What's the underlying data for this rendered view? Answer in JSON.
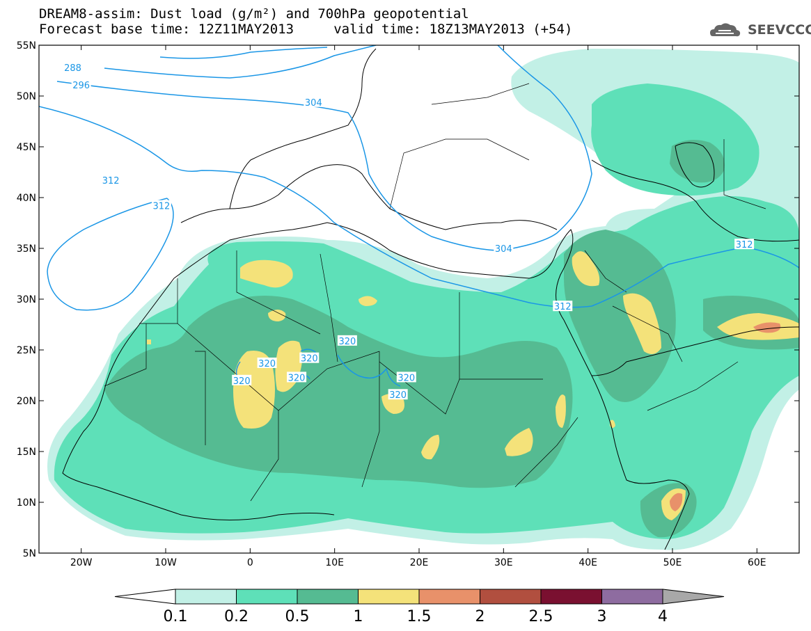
{
  "header": {
    "line1": "DREAM8-assim: Dust load (g/m²) and 700hPa geopotential",
    "line2": "Forecast base time: 12Z11MAY2013     valid time: 18Z13MAY2013 (+54)",
    "logo_text": "SEEVCCC"
  },
  "map": {
    "lon_range": [
      -25,
      65
    ],
    "lat_range": [
      5,
      55
    ],
    "lat_ticks": [
      "55N",
      "50N",
      "45N",
      "40N",
      "35N",
      "30N",
      "25N",
      "20N",
      "15N",
      "10N",
      "5N"
    ],
    "lon_ticks": [
      "20W",
      "10W",
      "0",
      "10E",
      "20E",
      "30E",
      "40E",
      "50E",
      "60E"
    ],
    "contour_labels": [
      {
        "text": "288",
        "lon": -21.0,
        "lat": 52.8
      },
      {
        "text": "296",
        "lon": -20.0,
        "lat": 51.1
      },
      {
        "text": "304",
        "lon": 7.5,
        "lat": 49.4
      },
      {
        "text": "312",
        "lon": -16.5,
        "lat": 41.7
      },
      {
        "text": "312",
        "lon": -10.5,
        "lat": 39.2
      },
      {
        "text": "304",
        "lon": 30.0,
        "lat": 35.0
      },
      {
        "text": "312",
        "lon": 37.0,
        "lat": 29.3
      },
      {
        "text": "312",
        "lon": 58.5,
        "lat": 35.4
      },
      {
        "text": "320",
        "lon": 11.5,
        "lat": 25.9
      },
      {
        "text": "320",
        "lon": 2.0,
        "lat": 23.7
      },
      {
        "text": "320",
        "lon": 7.0,
        "lat": 24.2
      },
      {
        "text": "320",
        "lon": 5.5,
        "lat": 22.3
      },
      {
        "text": "320",
        "lon": -1.0,
        "lat": 22.0
      },
      {
        "text": "320",
        "lon": 18.5,
        "lat": 22.3
      },
      {
        "text": "320",
        "lon": 17.5,
        "lat": 20.6
      }
    ]
  },
  "colorbar": {
    "levels": [
      "0.1",
      "0.2",
      "0.5",
      "1",
      "1.5",
      "2",
      "2.5",
      "3",
      "4"
    ],
    "colors": [
      "#c2f0e6",
      "#5ee0b8",
      "#55bb92",
      "#f4e27a",
      "#e8916a",
      "#b14f3f",
      "#7a1030",
      "#8e6ca0"
    ],
    "under_color": "#ffffff",
    "over_color": "#a8a8a8"
  },
  "colors": {
    "dust_light": "#c2f0e6",
    "dust_mid": "#5ee0b8",
    "dust_dark": "#55bb92",
    "dust_yellow": "#f4e27a",
    "dust_orange": "#e8916a",
    "contour": "#1a96e6"
  }
}
